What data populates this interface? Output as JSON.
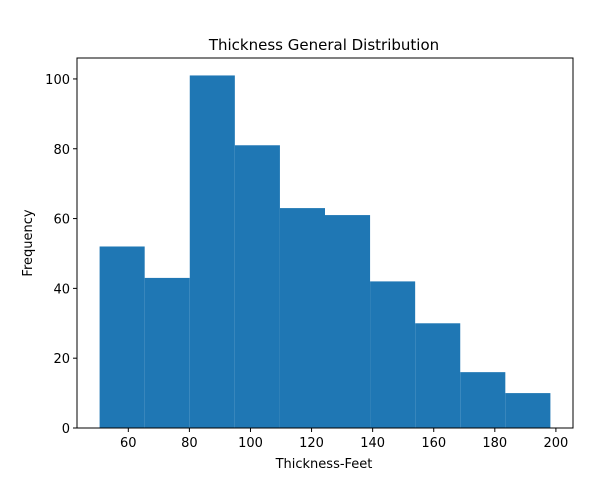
{
  "chart_data": {
    "type": "bar",
    "title": "Thickness General Distribution",
    "xlabel": "Thickness-Feet",
    "ylabel": "Frequency",
    "bin_edges": [
      50.6,
      65.36,
      80.12,
      94.88,
      109.64,
      124.4,
      139.16,
      153.92,
      168.68,
      183.44,
      198.2
    ],
    "values": [
      52,
      43,
      101,
      81,
      63,
      61,
      42,
      30,
      16,
      10
    ],
    "xlim": [
      43.2,
      205.6
    ],
    "ylim": [
      0,
      106
    ],
    "xticks": [
      60,
      80,
      100,
      120,
      140,
      160,
      180,
      200
    ],
    "yticks": [
      0,
      20,
      40,
      60,
      80,
      100
    ],
    "bar_color": "#1f77b4",
    "grid": false,
    "legend": "none"
  }
}
